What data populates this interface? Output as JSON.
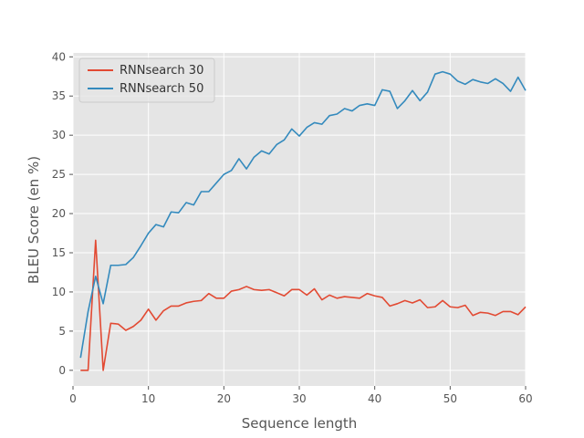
{
  "chart_data": {
    "type": "line",
    "xlabel": "Sequence length",
    "ylabel": "BLEU Score (en %)",
    "xlim": [
      0,
      60
    ],
    "ylim": [
      -2,
      40.5
    ],
    "xticks": [
      0,
      10,
      20,
      30,
      40,
      50,
      60
    ],
    "yticks": [
      0,
      5,
      10,
      15,
      20,
      25,
      30,
      35,
      40
    ],
    "grid": true,
    "legend_position": "top-left",
    "style": {
      "plot_background": "#e5e5e5",
      "grid_color": "#ffffff",
      "tick_color": "#555555"
    },
    "series": [
      {
        "name": "RNNsearch 30",
        "color": "#e24a33",
        "x": [
          1,
          2,
          3,
          4,
          5,
          6,
          7,
          8,
          9,
          10,
          11,
          12,
          13,
          14,
          15,
          16,
          17,
          18,
          19,
          20,
          21,
          22,
          23,
          24,
          25,
          26,
          27,
          28,
          29,
          30,
          31,
          32,
          33,
          34,
          35,
          36,
          37,
          38,
          39,
          40,
          41,
          42,
          43,
          44,
          45,
          46,
          47,
          48,
          49,
          50,
          51,
          52,
          53,
          54,
          55,
          56,
          57,
          58,
          59,
          60
        ],
        "values": [
          0,
          0,
          16.6,
          0,
          6,
          5.9,
          5.1,
          5.6,
          6.4,
          7.8,
          6.4,
          7.6,
          8.2,
          8.2,
          8.6,
          8.8,
          8.9,
          9.8,
          9.2,
          9.2,
          10.1,
          10.3,
          10.7,
          10.3,
          10.2,
          10.3,
          9.9,
          9.5,
          10.3,
          10.3,
          9.6,
          10.4,
          9,
          9.6,
          9.2,
          9.4,
          9.3,
          9.2,
          9.8,
          9.5,
          9.3,
          8.2,
          8.5,
          8.9,
          8.6,
          9,
          8,
          8.1,
          8.9,
          8.1,
          8,
          8.3,
          7,
          7.4,
          7.3,
          7,
          7.5,
          7.5,
          7.1,
          8.1
        ]
      },
      {
        "name": "RNNsearch 50",
        "color": "#348abd",
        "x": [
          1,
          2,
          3,
          4,
          5,
          6,
          7,
          8,
          9,
          10,
          11,
          12,
          13,
          14,
          15,
          16,
          17,
          18,
          19,
          20,
          21,
          22,
          23,
          24,
          25,
          26,
          27,
          28,
          29,
          30,
          31,
          32,
          33,
          34,
          35,
          36,
          37,
          38,
          39,
          40,
          41,
          42,
          43,
          44,
          45,
          46,
          47,
          48,
          49,
          50,
          51,
          52,
          53,
          54,
          55,
          56,
          57,
          58,
          59,
          60
        ],
        "values": [
          1.6,
          7.5,
          12,
          8.5,
          13.4,
          13.4,
          13.5,
          14.4,
          15.9,
          17.5,
          18.6,
          18.3,
          20.2,
          20.1,
          21.4,
          21.1,
          22.8,
          22.8,
          23.9,
          25,
          25.5,
          27,
          25.7,
          27.2,
          28,
          27.6,
          28.8,
          29.4,
          30.8,
          29.9,
          31,
          31.6,
          31.4,
          32.5,
          32.7,
          33.4,
          33.1,
          33.8,
          34,
          33.8,
          35.8,
          35.6,
          33.4,
          34.4,
          35.7,
          34.4,
          35.5,
          37.8,
          38.1,
          37.8,
          36.9,
          36.5,
          37.1,
          36.8,
          36.6,
          37.2,
          36.6,
          35.6,
          37.4,
          35.7
        ]
      }
    ]
  }
}
